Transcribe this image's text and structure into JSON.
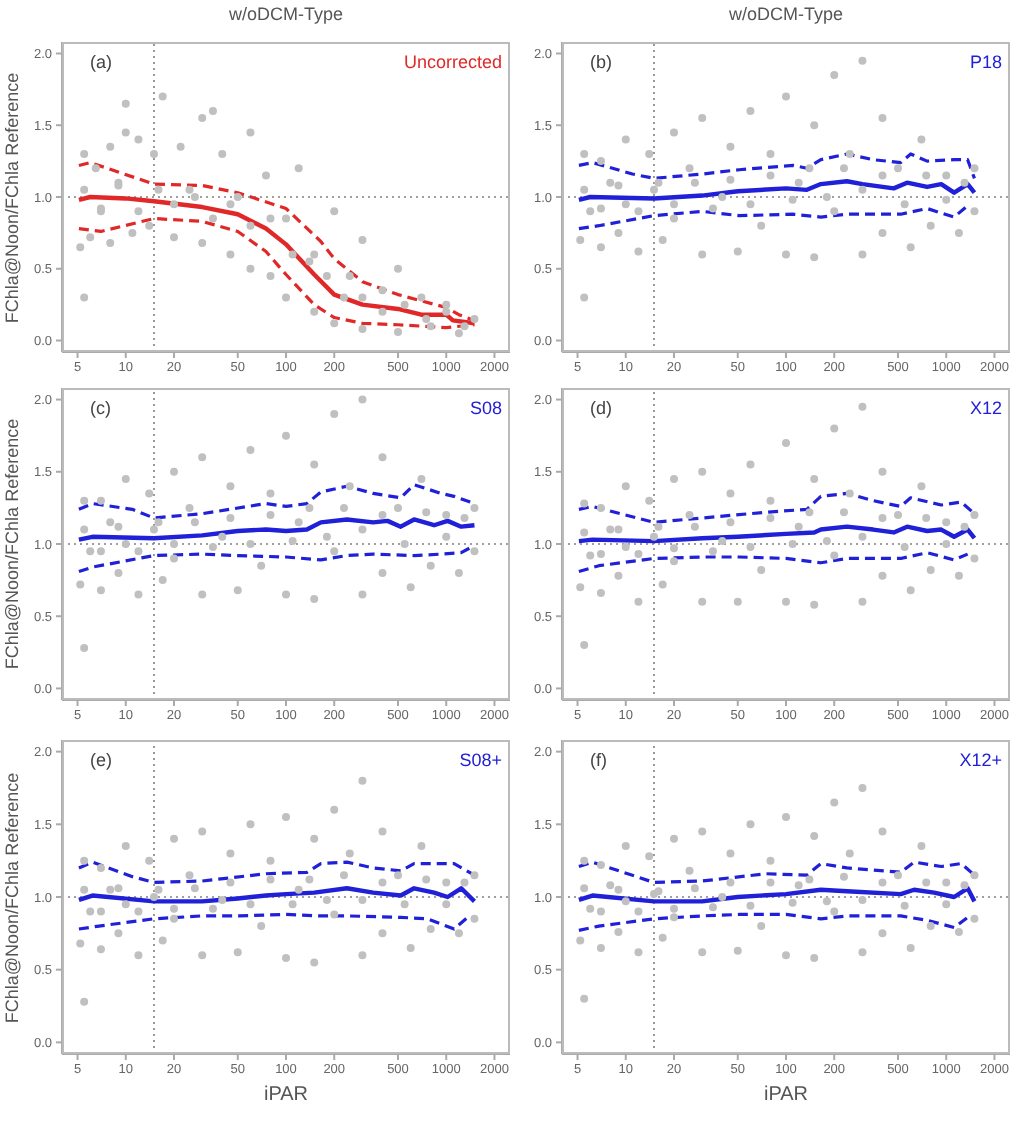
{
  "chart_data": [
    {
      "type": "line",
      "title": "w/oDCM-Type",
      "ylabel": "FChla@Noon/FChla Reference",
      "annotations": [
        "(a)"
      ],
      "log": "x",
      "line_style": "solid",
      "xlim": [
        4,
        2500
      ],
      "xticks": [
        5,
        10,
        20,
        50,
        100,
        200,
        500,
        1000,
        2000
      ],
      "ylim": [
        -0.08,
        2.08
      ],
      "yticks": [
        {
          "value": 0,
          "label": "0.0"
        },
        {
          "value": 0.5,
          "label": "0.5"
        },
        {
          "value": 1,
          "label": "1.0"
        },
        {
          "value": 1.5,
          "label": "1.5"
        },
        {
          "value": 2,
          "label": "2.0"
        }
      ],
      "ref_lines": [
        {
          "axis": "x",
          "value": 15,
          "color": "#808080",
          "line_style": "dotted"
        },
        {
          "axis": "y",
          "value": 1,
          "color": "#808080",
          "line_style": "dotted"
        }
      ],
      "series": [
        {
          "type": "scatter",
          "marker": "circle",
          "color": "#c0c0c0",
          "x": [
            5.2,
            5.5,
            6,
            6.5,
            7,
            8,
            8,
            9,
            10,
            11,
            12,
            14,
            15,
            17,
            20,
            22,
            25,
            30,
            30,
            40,
            45,
            50,
            60,
            60,
            75,
            80,
            100,
            100,
            120,
            150,
            150,
            200,
            200,
            250,
            300,
            300,
            400,
            500,
            500,
            700,
            800,
            1000,
            1200,
            1500,
            5.5,
            10,
            35,
            5.5,
            7,
            9,
            12,
            16,
            20,
            27,
            35,
            45,
            60,
            80,
            110,
            140,
            180,
            230,
            300,
            400,
            550,
            750,
            1000,
            1300
          ],
          "values": [
            0.65,
            1.3,
            0.72,
            1.2,
            0.9,
            1.35,
            0.68,
            1.1,
            1.65,
            0.75,
            1.4,
            0.8,
            1.3,
            1.7,
            0.72,
            1.35,
            1.05,
            0.68,
            1.55,
            1.3,
            0.6,
            1.0,
            1.45,
            0.5,
            1.15,
            0.45,
            0.85,
            0.3,
            1.2,
            0.6,
            0.2,
            0.9,
            0.12,
            0.45,
            0.7,
            0.08,
            0.35,
            0.5,
            0.06,
            0.3,
            0.1,
            0.25,
            0.05,
            0.15,
            0.3,
            1.45,
            1.6,
            1.05,
            0.92,
            1.08,
            0.9,
            1.05,
            0.95,
            1.0,
            0.85,
            0.95,
            0.8,
            0.85,
            0.6,
            0.55,
            0.45,
            0.3,
            0.3,
            0.2,
            0.25,
            0.15,
            0.2,
            0.1
          ]
        },
        {
          "name": "Uncorrected",
          "color": "#e02828",
          "x": [
            5.1,
            6,
            10,
            15,
            30,
            50,
            75,
            100,
            150,
            200,
            300,
            500,
            700,
            1000,
            1100,
            1500
          ],
          "values": [
            0.98,
            1.0,
            0.99,
            0.97,
            0.93,
            0.88,
            0.78,
            0.67,
            0.46,
            0.32,
            0.25,
            0.22,
            0.18,
            0.18,
            0.14,
            0.12
          ]
        },
        {
          "color": "#e02828",
          "line_style": "dashed",
          "x": [
            5.1,
            6,
            15,
            30,
            50,
            100,
            165,
            200,
            300,
            500,
            1000,
            1200,
            1500
          ],
          "values": [
            1.22,
            1.24,
            1.09,
            1.08,
            1.03,
            0.92,
            0.69,
            0.57,
            0.41,
            0.32,
            0.23,
            0.18,
            0.14
          ]
        },
        {
          "color": "#e02828",
          "line_style": "dashed",
          "x": [
            5.1,
            7,
            15,
            30,
            50,
            75,
            100,
            150,
            200,
            300,
            500,
            1000,
            1500
          ],
          "values": [
            0.78,
            0.76,
            0.85,
            0.83,
            0.76,
            0.62,
            0.46,
            0.25,
            0.16,
            0.12,
            0.11,
            0.09,
            0.11
          ]
        }
      ]
    },
    {
      "type": "line",
      "title": "w/oDCM-Type",
      "annotations": [
        "(b)"
      ],
      "log": "x",
      "line_style": "solid",
      "xlim": [
        4,
        2500
      ],
      "xticks": [
        5,
        10,
        20,
        50,
        100,
        200,
        500,
        1000,
        2000
      ],
      "ylim": [
        -0.08,
        2.08
      ],
      "yticks": [
        {
          "value": 0,
          "label": "0.0"
        },
        {
          "value": 0.5,
          "label": "0.5"
        },
        {
          "value": 1,
          "label": "1.0"
        },
        {
          "value": 1.5,
          "label": "1.5"
        },
        {
          "value": 2,
          "label": "2.0"
        }
      ],
      "ref_lines": [
        {
          "axis": "x",
          "value": 15,
          "color": "#808080",
          "line_style": "dotted"
        },
        {
          "axis": "y",
          "value": 1,
          "color": "#808080",
          "line_style": "dotted"
        }
      ],
      "series": [
        {
          "type": "scatter",
          "marker": "circle",
          "color": "#c0c0c0",
          "x": [
            5.2,
            5.5,
            5.5,
            6,
            7,
            7,
            8,
            9,
            10,
            10,
            12,
            14,
            15,
            17,
            20,
            20,
            25,
            30,
            30,
            40,
            45,
            50,
            60,
            70,
            80,
            100,
            100,
            120,
            150,
            150,
            200,
            200,
            250,
            300,
            300,
            400,
            400,
            500,
            600,
            700,
            800,
            1000,
            1200,
            1500,
            1500,
            5.5,
            7,
            9,
            12,
            16,
            20,
            27,
            35,
            45,
            60,
            80,
            110,
            140,
            180,
            230,
            300,
            400,
            550,
            750,
            1000,
            1300
          ],
          "values": [
            0.7,
            1.3,
            0.3,
            0.9,
            1.25,
            0.65,
            1.1,
            0.75,
            1.4,
            0.95,
            0.62,
            1.3,
            1.05,
            0.7,
            1.45,
            0.85,
            1.2,
            0.6,
            1.55,
            1.0,
            1.35,
            0.62,
            1.6,
            0.8,
            1.3,
            1.7,
            0.6,
            1.1,
            1.5,
            0.58,
            1.85,
            0.9,
            1.3,
            1.95,
            0.6,
            1.55,
            0.75,
            1.2,
            0.65,
            1.4,
            0.8,
            1.15,
            0.75,
            1.2,
            0.9,
            1.05,
            0.92,
            1.08,
            0.9,
            1.1,
            0.95,
            1.1,
            0.92,
            1.12,
            0.95,
            1.15,
            0.98,
            1.2,
            1.0,
            1.2,
            1.05,
            1.15,
            0.95,
            1.15,
            0.98,
            1.1
          ]
        },
        {
          "name": "P18",
          "color": "#2020d8",
          "x": [
            5.1,
            6,
            15,
            30,
            50,
            100,
            135,
            165,
            240,
            300,
            470,
            570,
            760,
            930,
            1120,
            1360,
            1500
          ],
          "values": [
            0.98,
            1.0,
            0.99,
            1.01,
            1.04,
            1.06,
            1.05,
            1.09,
            1.11,
            1.09,
            1.06,
            1.1,
            1.07,
            1.09,
            1.03,
            1.09,
            1.03
          ]
        },
        {
          "color": "#2020d8",
          "line_style": "dashed",
          "x": [
            5.1,
            6.2,
            11,
            15,
            30,
            51,
            111,
            135,
            165,
            240,
            350,
            520,
            600,
            760,
            1120,
            1360,
            1500
          ],
          "values": [
            1.22,
            1.24,
            1.16,
            1.13,
            1.16,
            1.19,
            1.22,
            1.2,
            1.26,
            1.3,
            1.26,
            1.24,
            1.3,
            1.25,
            1.26,
            1.26,
            1.13
          ]
        },
        {
          "color": "#2020d8",
          "line_style": "dashed",
          "x": [
            5.1,
            6.8,
            15,
            30,
            51,
            111,
            165,
            240,
            520,
            760,
            1120,
            1360
          ],
          "values": [
            0.78,
            0.8,
            0.87,
            0.9,
            0.87,
            0.88,
            0.86,
            0.88,
            0.88,
            0.92,
            0.86,
            0.94
          ]
        }
      ]
    },
    {
      "type": "line",
      "ylabel": "FChla@Noon/FChla Reference",
      "annotations": [
        "(c)"
      ],
      "log": "x",
      "line_style": "solid",
      "xlim": [
        4,
        2500
      ],
      "xticks": [
        5,
        10,
        20,
        50,
        100,
        200,
        500,
        1000,
        2000
      ],
      "ylim": [
        -0.08,
        2.08
      ],
      "yticks": [
        {
          "value": 0,
          "label": "0.0"
        },
        {
          "value": 0.5,
          "label": "0.5"
        },
        {
          "value": 1,
          "label": "1.0"
        },
        {
          "value": 1.5,
          "label": "1.5"
        },
        {
          "value": 2,
          "label": "2.0"
        }
      ],
      "ref_lines": [
        {
          "axis": "x",
          "value": 15,
          "color": "#808080",
          "line_style": "dotted"
        },
        {
          "axis": "y",
          "value": 1,
          "color": "#808080",
          "line_style": "dotted"
        }
      ],
      "series": [
        {
          "type": "scatter",
          "marker": "circle",
          "color": "#c0c0c0",
          "x": [
            5.2,
            5.5,
            5.5,
            6,
            7,
            7,
            8,
            9,
            10,
            10,
            12,
            14,
            15,
            17,
            20,
            20,
            25,
            30,
            30,
            40,
            45,
            50,
            60,
            70,
            80,
            100,
            100,
            120,
            150,
            150,
            200,
            200,
            250,
            300,
            300,
            400,
            400,
            500,
            600,
            700,
            800,
            1000,
            1200,
            1500,
            1500,
            5.5,
            7,
            9,
            12,
            16,
            20,
            27,
            35,
            45,
            60,
            80,
            110,
            140,
            180,
            230,
            300,
            400,
            550,
            750,
            1000,
            1300
          ],
          "values": [
            0.72,
            1.3,
            0.28,
            0.95,
            1.3,
            0.68,
            1.15,
            0.8,
            1.45,
            1.0,
            0.65,
            1.35,
            1.1,
            0.75,
            1.5,
            0.9,
            1.25,
            0.65,
            1.6,
            1.05,
            1.4,
            0.68,
            1.65,
            0.85,
            1.35,
            1.75,
            0.65,
            1.15,
            1.55,
            0.62,
            1.9,
            0.95,
            1.4,
            2.0,
            0.65,
            1.6,
            0.8,
            1.25,
            0.7,
            1.45,
            0.85,
            1.2,
            0.8,
            1.25,
            0.95,
            1.1,
            0.95,
            1.12,
            0.95,
            1.15,
            1.0,
            1.15,
            0.98,
            1.18,
            1.0,
            1.2,
            1.02,
            1.25,
            1.05,
            1.25,
            1.1,
            1.2,
            1.0,
            1.22,
            1.05,
            1.18
          ]
        },
        {
          "name": "S08",
          "color": "#2020d8",
          "x": [
            5.1,
            6.2,
            15,
            30,
            50,
            75,
            100,
            135,
            165,
            240,
            350,
            430,
            520,
            630,
            840,
            1020,
            1240,
            1500
          ],
          "values": [
            1.03,
            1.05,
            1.04,
            1.06,
            1.09,
            1.1,
            1.09,
            1.1,
            1.15,
            1.17,
            1.15,
            1.16,
            1.12,
            1.17,
            1.13,
            1.16,
            1.12,
            1.13
          ]
        },
        {
          "color": "#2020d8",
          "line_style": "dashed",
          "x": [
            5.1,
            6.2,
            11,
            15,
            30,
            75,
            100,
            135,
            165,
            240,
            350,
            520,
            630,
            930,
            1120,
            1500
          ],
          "values": [
            1.24,
            1.28,
            1.24,
            1.18,
            1.21,
            1.28,
            1.26,
            1.28,
            1.36,
            1.4,
            1.35,
            1.32,
            1.41,
            1.35,
            1.33,
            1.28
          ]
        },
        {
          "color": "#2020d8",
          "line_style": "dashed",
          "x": [
            5.1,
            6.2,
            15,
            30,
            50,
            100,
            165,
            240,
            350,
            630,
            930,
            1240,
            1500
          ],
          "values": [
            0.81,
            0.84,
            0.92,
            0.93,
            0.92,
            0.91,
            0.89,
            0.92,
            0.93,
            0.92,
            0.93,
            0.94,
            0.99
          ]
        }
      ]
    },
    {
      "type": "line",
      "annotations": [
        "(d)"
      ],
      "log": "x",
      "line_style": "solid",
      "xlim": [
        4,
        2500
      ],
      "xticks": [
        5,
        10,
        20,
        50,
        100,
        200,
        500,
        1000,
        2000
      ],
      "ylim": [
        -0.08,
        2.08
      ],
      "yticks": [
        {
          "value": 0,
          "label": "0.0"
        },
        {
          "value": 0.5,
          "label": "0.5"
        },
        {
          "value": 1,
          "label": "1.0"
        },
        {
          "value": 1.5,
          "label": "1.5"
        },
        {
          "value": 2,
          "label": "2.0"
        }
      ],
      "ref_lines": [
        {
          "axis": "x",
          "value": 15,
          "color": "#808080",
          "line_style": "dotted"
        },
        {
          "axis": "y",
          "value": 1,
          "color": "#808080",
          "line_style": "dotted"
        }
      ],
      "series": [
        {
          "type": "scatter",
          "marker": "circle",
          "color": "#c0c0c0",
          "x": [
            5.2,
            5.5,
            5.5,
            6,
            7,
            7,
            8,
            9,
            10,
            10,
            12,
            14,
            15,
            17,
            20,
            20,
            25,
            30,
            30,
            40,
            45,
            50,
            60,
            70,
            80,
            100,
            100,
            120,
            150,
            150,
            200,
            200,
            250,
            300,
            300,
            400,
            400,
            500,
            600,
            700,
            800,
            1000,
            1200,
            1500,
            1500,
            5.5,
            7,
            9,
            12,
            16,
            20,
            27,
            35,
            45,
            60,
            80,
            110,
            140,
            180,
            230,
            300,
            400,
            550,
            750,
            1000,
            1300
          ],
          "values": [
            0.7,
            1.28,
            0.3,
            0.92,
            1.25,
            0.66,
            1.1,
            0.78,
            1.4,
            0.98,
            0.6,
            1.3,
            1.05,
            0.72,
            1.45,
            0.88,
            1.2,
            0.6,
            1.5,
            1.02,
            1.35,
            0.6,
            1.55,
            0.82,
            1.3,
            1.7,
            0.6,
            1.12,
            1.45,
            0.58,
            1.8,
            0.92,
            1.35,
            1.95,
            0.6,
            1.5,
            0.78,
            1.2,
            0.68,
            1.4,
            0.82,
            1.15,
            0.78,
            1.2,
            0.9,
            1.08,
            0.93,
            1.1,
            0.93,
            1.12,
            0.97,
            1.12,
            0.95,
            1.15,
            0.98,
            1.18,
            1.0,
            1.22,
            1.02,
            1.22,
            1.05,
            1.18,
            0.98,
            1.18,
            1.0,
            1.12
          ]
        },
        {
          "name": "X12",
          "color": "#2020d8",
          "x": [
            5.1,
            6.2,
            15,
            30,
            50,
            100,
            150,
            165,
            240,
            350,
            470,
            570,
            760,
            930,
            1120,
            1360,
            1500
          ],
          "values": [
            1.02,
            1.03,
            1.02,
            1.04,
            1.05,
            1.07,
            1.08,
            1.1,
            1.12,
            1.1,
            1.08,
            1.12,
            1.09,
            1.1,
            1.05,
            1.1,
            1.04
          ]
        },
        {
          "color": "#2020d8",
          "line_style": "dashed",
          "x": [
            5.1,
            6.2,
            15,
            30,
            75,
            135,
            165,
            240,
            350,
            520,
            600,
            930,
            1240,
            1500
          ],
          "values": [
            1.24,
            1.26,
            1.15,
            1.18,
            1.22,
            1.24,
            1.33,
            1.35,
            1.3,
            1.26,
            1.32,
            1.27,
            1.29,
            1.21
          ]
        },
        {
          "color": "#2020d8",
          "line_style": "dashed",
          "x": [
            5.1,
            6.8,
            15,
            30,
            51,
            100,
            165,
            240,
            520,
            760,
            1120,
            1360
          ],
          "values": [
            0.81,
            0.85,
            0.9,
            0.91,
            0.91,
            0.9,
            0.87,
            0.9,
            0.9,
            0.94,
            0.89,
            0.93
          ]
        }
      ]
    },
    {
      "type": "line",
      "xlabel": "iPAR",
      "ylabel": "FChla@Noon/FChla Reference",
      "annotations": [
        "(e)"
      ],
      "log": "x",
      "line_style": "solid",
      "xlim": [
        4,
        2500
      ],
      "xticks": [
        5,
        10,
        20,
        50,
        100,
        200,
        500,
        1000,
        2000
      ],
      "ylim": [
        -0.08,
        2.08
      ],
      "yticks": [
        {
          "value": 0,
          "label": "0.0"
        },
        {
          "value": 0.5,
          "label": "0.5"
        },
        {
          "value": 1,
          "label": "1.0"
        },
        {
          "value": 1.5,
          "label": "1.5"
        },
        {
          "value": 2,
          "label": "2.0"
        }
      ],
      "ref_lines": [
        {
          "axis": "x",
          "value": 15,
          "color": "#808080",
          "line_style": "dotted"
        },
        {
          "axis": "y",
          "value": 1,
          "color": "#808080",
          "line_style": "dotted"
        }
      ],
      "series": [
        {
          "type": "scatter",
          "marker": "circle",
          "color": "#c0c0c0",
          "x": [
            5.2,
            5.5,
            5.5,
            6,
            7,
            7,
            8,
            9,
            10,
            10,
            12,
            14,
            15,
            17,
            20,
            20,
            25,
            30,
            30,
            40,
            45,
            50,
            60,
            70,
            80,
            100,
            100,
            120,
            150,
            150,
            200,
            200,
            250,
            300,
            300,
            400,
            400,
            500,
            600,
            700,
            800,
            1000,
            1200,
            1500,
            1500,
            5.5,
            7,
            9,
            12,
            16,
            20,
            27,
            35,
            45,
            60,
            80,
            110,
            140,
            180,
            230,
            300,
            400,
            550,
            750,
            1000,
            1300
          ],
          "values": [
            0.68,
            1.25,
            0.28,
            0.9,
            1.2,
            0.64,
            1.05,
            0.75,
            1.35,
            0.95,
            0.6,
            1.25,
            1.0,
            0.7,
            1.4,
            0.85,
            1.15,
            0.6,
            1.45,
            0.98,
            1.3,
            0.62,
            1.5,
            0.8,
            1.25,
            1.55,
            0.58,
            1.05,
            1.4,
            0.55,
            1.6,
            0.88,
            1.3,
            1.8,
            0.6,
            1.45,
            0.75,
            1.15,
            0.65,
            1.35,
            0.78,
            1.1,
            0.75,
            1.15,
            0.85,
            1.05,
            0.9,
            1.06,
            0.9,
            1.05,
            0.92,
            1.06,
            0.92,
            1.1,
            0.95,
            1.12,
            0.95,
            1.12,
            0.98,
            1.15,
            0.98,
            1.1,
            0.95,
            1.12,
            0.95,
            1.1
          ]
        },
        {
          "name": "S08+",
          "color": "#2020d8",
          "x": [
            5.1,
            6.2,
            15,
            30,
            50,
            75,
            100,
            150,
            240,
            350,
            520,
            630,
            840,
            1020,
            1240,
            1500
          ],
          "values": [
            0.98,
            1.01,
            0.97,
            0.97,
            0.99,
            1.01,
            1.02,
            1.03,
            1.06,
            1.03,
            1.01,
            1.06,
            1.03,
            1.0,
            1.06,
            0.97
          ]
        },
        {
          "color": "#2020d8",
          "line_style": "dashed",
          "x": [
            5.1,
            6.2,
            11,
            15,
            30,
            75,
            135,
            165,
            240,
            350,
            520,
            630,
            930,
            1120,
            1500
          ],
          "values": [
            1.2,
            1.24,
            1.14,
            1.1,
            1.11,
            1.16,
            1.17,
            1.23,
            1.24,
            1.2,
            1.18,
            1.23,
            1.23,
            1.23,
            1.15
          ]
        },
        {
          "color": "#2020d8",
          "line_style": "dashed",
          "x": [
            5.1,
            6.8,
            15,
            30,
            51,
            100,
            165,
            240,
            520,
            760,
            1120,
            1360
          ],
          "values": [
            0.78,
            0.8,
            0.85,
            0.87,
            0.87,
            0.88,
            0.87,
            0.87,
            0.86,
            0.85,
            0.78,
            0.86
          ]
        }
      ]
    },
    {
      "type": "line",
      "xlabel": "iPAR",
      "annotations": [
        "(f)"
      ],
      "log": "x",
      "line_style": "solid",
      "xlim": [
        4,
        2500
      ],
      "xticks": [
        5,
        10,
        20,
        50,
        100,
        200,
        500,
        1000,
        2000
      ],
      "ylim": [
        -0.08,
        2.08
      ],
      "yticks": [
        {
          "value": 0,
          "label": "0.0"
        },
        {
          "value": 0.5,
          "label": "0.5"
        },
        {
          "value": 1,
          "label": "1.0"
        },
        {
          "value": 1.5,
          "label": "1.5"
        },
        {
          "value": 2,
          "label": "2.0"
        }
      ],
      "ref_lines": [
        {
          "axis": "x",
          "value": 15,
          "color": "#808080",
          "line_style": "dotted"
        },
        {
          "axis": "y",
          "value": 1,
          "color": "#808080",
          "line_style": "dotted"
        }
      ],
      "series": [
        {
          "type": "scatter",
          "marker": "circle",
          "color": "#c0c0c0",
          "x": [
            5.2,
            5.5,
            5.5,
            6,
            7,
            7,
            8,
            9,
            10,
            10,
            12,
            14,
            15,
            17,
            20,
            20,
            25,
            30,
            30,
            40,
            45,
            50,
            60,
            70,
            80,
            100,
            100,
            120,
            150,
            150,
            200,
            200,
            250,
            300,
            300,
            400,
            400,
            500,
            600,
            700,
            800,
            1000,
            1200,
            1500,
            1500,
            5.5,
            7,
            9,
            12,
            16,
            20,
            27,
            35,
            45,
            60,
            80,
            110,
            140,
            180,
            230,
            300,
            400,
            550,
            750,
            1000,
            1300
          ],
          "values": [
            0.7,
            1.25,
            0.3,
            0.92,
            1.22,
            0.65,
            1.08,
            0.76,
            1.35,
            0.97,
            0.62,
            1.28,
            1.02,
            0.72,
            1.4,
            0.86,
            1.18,
            0.62,
            1.45,
            1.0,
            1.3,
            0.63,
            1.5,
            0.8,
            1.25,
            1.55,
            0.6,
            1.08,
            1.42,
            0.58,
            1.65,
            0.9,
            1.3,
            1.75,
            0.62,
            1.45,
            0.75,
            1.15,
            0.65,
            1.35,
            0.8,
            1.1,
            0.76,
            1.15,
            0.85,
            1.06,
            0.9,
            1.05,
            0.9,
            1.04,
            0.92,
            1.06,
            0.93,
            1.1,
            0.94,
            1.1,
            0.96,
            1.12,
            0.97,
            1.14,
            0.98,
            1.1,
            0.94,
            1.1,
            0.95,
            1.08
          ]
        },
        {
          "name": "X12+",
          "color": "#2020d8",
          "x": [
            5.1,
            6.2,
            15,
            30,
            50,
            100,
            165,
            240,
            520,
            630,
            840,
            1120,
            1360,
            1500
          ],
          "values": [
            0.98,
            1.01,
            0.97,
            0.97,
            1.0,
            1.02,
            1.05,
            1.04,
            1.02,
            1.05,
            1.03,
            1.0,
            1.06,
            0.97
          ]
        },
        {
          "color": "#2020d8",
          "line_style": "dashed",
          "x": [
            5.1,
            6.2,
            15,
            30,
            75,
            135,
            165,
            240,
            520,
            630,
            930,
            1240,
            1500
          ],
          "values": [
            1.21,
            1.24,
            1.1,
            1.11,
            1.16,
            1.15,
            1.23,
            1.2,
            1.17,
            1.24,
            1.21,
            1.23,
            1.15
          ]
        },
        {
          "color": "#2020d8",
          "line_style": "dashed",
          "x": [
            5.1,
            6.8,
            15,
            30,
            51,
            100,
            165,
            240,
            520,
            760,
            1120,
            1360
          ],
          "values": [
            0.77,
            0.8,
            0.85,
            0.87,
            0.88,
            0.88,
            0.85,
            0.87,
            0.87,
            0.84,
            0.79,
            0.86
          ]
        }
      ]
    }
  ]
}
